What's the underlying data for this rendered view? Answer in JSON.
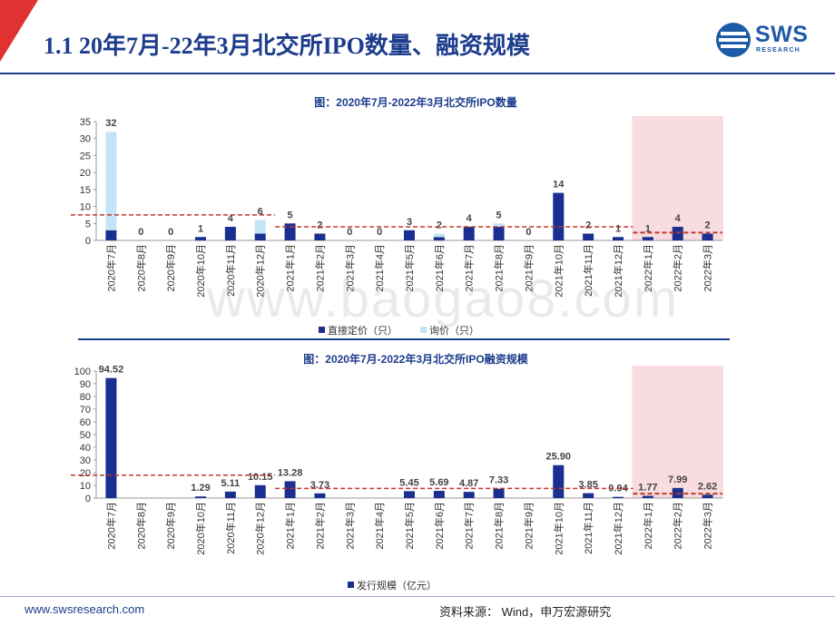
{
  "page": {
    "title": "1.1 20年7月-22年3月北交所IPO数量、融资规模",
    "logo": {
      "text": "SWS",
      "subtext": "RESEARCH"
    },
    "watermark": "www.baogao8.com",
    "footer": {
      "url": "www.swsresearch.com",
      "source": "资料来源： Wind，申万宏源研究"
    },
    "colors": {
      "title_blue": "#1c3c8c",
      "bar_dark": "#1a2f8f",
      "bar_light": "#c5e3f6",
      "highlight_pink": "#f8dcdf",
      "dashed_red": "#c0392b",
      "corner_red": "#e03232"
    }
  },
  "chart_data": [
    {
      "type": "bar",
      "stacked": true,
      "title": "图：2020年7月-2022年3月北交所IPO数量",
      "categories": [
        "2020年7月",
        "2020年8月",
        "2020年9月",
        "2020年10月",
        "2020年11月",
        "2020年12月",
        "2021年1月",
        "2021年2月",
        "2021年3月",
        "2021年4月",
        "2021年5月",
        "2021年6月",
        "2021年7月",
        "2021年8月",
        "2021年9月",
        "2021年10月",
        "2021年11月",
        "2021年12月",
        "2022年1月",
        "2022年2月",
        "2022年3月"
      ],
      "series": [
        {
          "name": "直接定价（只）",
          "color": "#1a2f8f",
          "values": [
            3,
            0,
            0,
            1,
            4,
            2,
            5,
            2,
            0,
            0,
            3,
            1,
            4,
            4,
            0,
            14,
            2,
            1,
            1,
            4,
            2
          ]
        },
        {
          "name": "询价（只）",
          "color": "#c5e3f6",
          "values": [
            29,
            0,
            0,
            0,
            0,
            4,
            0,
            0,
            0,
            0,
            0,
            1,
            0,
            1,
            0,
            0,
            0,
            0,
            0,
            0,
            0
          ]
        }
      ],
      "data_labels": [
        "32",
        "0",
        "0",
        "1",
        "4",
        "6",
        "5",
        "2",
        "0",
        "0",
        "3",
        "2",
        "4",
        "5",
        "0",
        "14",
        "2",
        "1",
        "1",
        "4",
        "2"
      ],
      "ylim": [
        0,
        35
      ],
      "yticks": [
        "0",
        "5",
        "10",
        "15",
        "20",
        "25",
        "30",
        "35"
      ],
      "reference_lines": [
        {
          "from": "2020年7月",
          "to": "2020年12月",
          "value": 7.5
        },
        {
          "from": "2021年1月",
          "to": "2021年12月",
          "value": 4
        },
        {
          "from": "2022年1月",
          "to": "2022年3月",
          "value": 2.3
        }
      ],
      "highlight_range": [
        "2022年1月",
        "2022年3月"
      ],
      "legend": "bottom"
    },
    {
      "type": "bar",
      "title": "图：2020年7月-2022年3月北交所IPO融资规模",
      "categories": [
        "2020年7月",
        "2020年8月",
        "2020年9月",
        "2020年10月",
        "2020年11月",
        "2020年12月",
        "2021年1月",
        "2021年2月",
        "2021年3月",
        "2021年4月",
        "2021年5月",
        "2021年6月",
        "2021年7月",
        "2021年8月",
        "2021年9月",
        "2021年10月",
        "2021年11月",
        "2021年12月",
        "2022年1月",
        "2022年2月",
        "2022年3月"
      ],
      "series": [
        {
          "name": "发行规模（亿元）",
          "color": "#1a2f8f",
          "values": [
            94.52,
            0,
            0,
            1.29,
            5.11,
            10.15,
            13.28,
            3.73,
            0,
            0,
            5.45,
            5.69,
            4.87,
            7.33,
            0,
            25.9,
            3.85,
            0.94,
            1.77,
            7.99,
            2.62
          ]
        }
      ],
      "data_labels": [
        "94.52",
        "",
        "",
        "1.29",
        "5.11",
        "10.15",
        "13.28",
        "3.73",
        "",
        "",
        "5.45",
        "5.69",
        "4.87",
        "7.33",
        "",
        "25.90",
        "3.85",
        "0.94",
        "1.77",
        "7.99",
        "2.62"
      ],
      "ylim": [
        0,
        100
      ],
      "yticks": [
        "0",
        "10",
        "20",
        "30",
        "40",
        "50",
        "60",
        "70",
        "80",
        "90",
        "100"
      ],
      "reference_lines": [
        {
          "from": "2020年7月",
          "to": "2020年12月",
          "value": 18
        },
        {
          "from": "2021年1月",
          "to": "2021年12月",
          "value": 7.6
        },
        {
          "from": "2022年1月",
          "to": "2022年3月",
          "value": 3.5
        }
      ],
      "highlight_range": [
        "2022年1月",
        "2022年3月"
      ],
      "legend": "bottom"
    }
  ]
}
